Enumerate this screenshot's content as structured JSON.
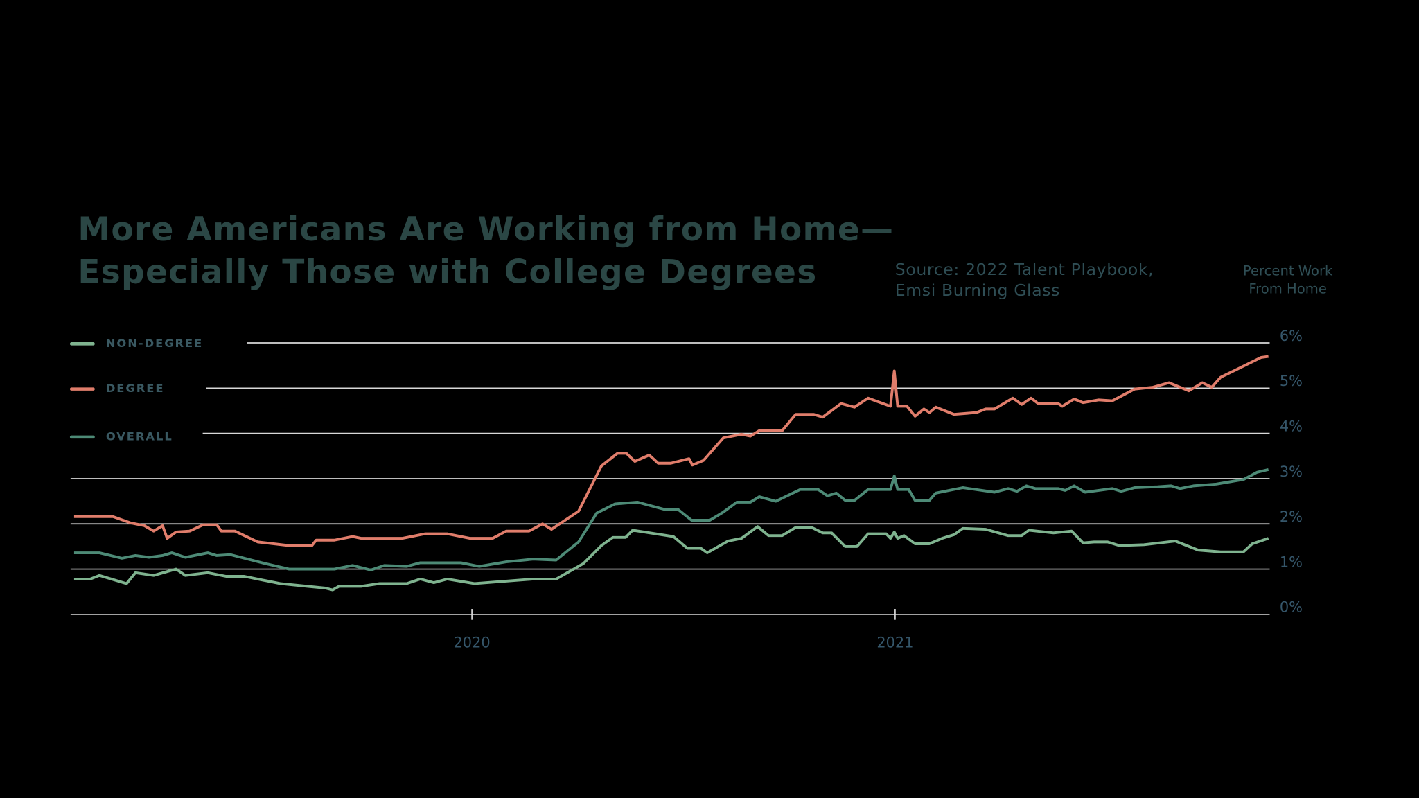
{
  "chart_data": {
    "type": "line",
    "title": [
      "More Americans Are Working from Home—",
      "Especially Those with College Degrees"
    ],
    "source": [
      "Source: 2022 Talent Playbook,",
      "Emsi Burning Glass"
    ],
    "y_label": [
      "Percent Work",
      "From Home"
    ],
    "xlim": [
      2019.056,
      2021.885
    ],
    "xticks": [
      2020,
      2021
    ],
    "ylim": [
      0,
      6
    ],
    "yticks": [
      {
        "value": 0,
        "label": "0%"
      },
      {
        "value": 1,
        "label": "1%"
      },
      {
        "value": 2,
        "label": "2%"
      },
      {
        "value": 3,
        "label": "3%"
      },
      {
        "value": 4,
        "label": "4%"
      },
      {
        "value": 5,
        "label": "5%"
      },
      {
        "value": 6,
        "label": "6%"
      }
    ],
    "grid": true,
    "legend": "upper left",
    "series": [
      {
        "name": "NON-DEGREE",
        "color": "#7fb38f",
        "x": [
          2019.06,
          2019.098,
          2019.12,
          2019.184,
          2019.205,
          2019.248,
          2019.301,
          2019.323,
          2019.376,
          2019.419,
          2019.462,
          2019.547,
          2019.611,
          2019.654,
          2019.671,
          2019.686,
          2019.739,
          2019.782,
          2019.846,
          2019.878,
          2019.91,
          2019.942,
          2020.006,
          2020.145,
          2020.199,
          2020.263,
          2020.306,
          2020.333,
          2020.363,
          2020.38,
          2020.476,
          2020.509,
          2020.541,
          2020.556,
          2020.605,
          2020.637,
          2020.675,
          2020.701,
          2020.733,
          2020.765,
          2020.803,
          2020.829,
          2020.85,
          2020.882,
          2020.91,
          2020.936,
          2020.979,
          2020.989,
          2020.998,
          2021.006,
          2021.021,
          2021.047,
          2021.081,
          2021.111,
          2021.139,
          2021.16,
          2021.214,
          2021.267,
          2021.299,
          2021.316,
          2021.374,
          2021.417,
          2021.444,
          2021.47,
          2021.502,
          2021.53,
          2021.588,
          2021.662,
          2021.716,
          2021.769,
          2021.823,
          2021.844,
          2021.882
        ],
        "values": [
          0.78,
          0.78,
          0.86,
          0.68,
          0.92,
          0.86,
          1.0,
          0.86,
          0.92,
          0.84,
          0.84,
          0.68,
          0.62,
          0.58,
          0.54,
          0.62,
          0.62,
          0.68,
          0.68,
          0.78,
          0.7,
          0.78,
          0.68,
          0.78,
          0.78,
          1.12,
          1.52,
          1.7,
          1.7,
          1.86,
          1.72,
          1.46,
          1.46,
          1.36,
          1.62,
          1.68,
          1.94,
          1.74,
          1.74,
          1.92,
          1.92,
          1.8,
          1.8,
          1.5,
          1.5,
          1.78,
          1.78,
          1.68,
          1.82,
          1.68,
          1.74,
          1.56,
          1.56,
          1.68,
          1.76,
          1.9,
          1.88,
          1.74,
          1.74,
          1.86,
          1.8,
          1.84,
          1.58,
          1.6,
          1.6,
          1.52,
          1.54,
          1.62,
          1.42,
          1.38,
          1.38,
          1.56,
          1.68
        ]
      },
      {
        "name": "DEGREE",
        "color": "#e07d6b",
        "x": [
          2019.06,
          2019.152,
          2019.194,
          2019.226,
          2019.248,
          2019.269,
          2019.28,
          2019.301,
          2019.333,
          2019.365,
          2019.397,
          2019.408,
          2019.44,
          2019.494,
          2019.568,
          2019.622,
          2019.632,
          2019.675,
          2019.718,
          2019.739,
          2019.835,
          2019.889,
          2019.942,
          2019.996,
          2020.049,
          2020.081,
          2020.135,
          2020.167,
          2020.188,
          2020.252,
          2020.306,
          2020.344,
          2020.365,
          2020.385,
          2020.419,
          2020.44,
          2020.47,
          2020.513,
          2020.521,
          2020.547,
          2020.594,
          2020.637,
          2020.658,
          2020.679,
          2020.733,
          2020.765,
          2020.808,
          2020.829,
          2020.872,
          2020.904,
          2020.936,
          2020.989,
          2020.998,
          2021.006,
          2021.028,
          2021.047,
          2021.068,
          2021.081,
          2021.096,
          2021.139,
          2021.192,
          2021.214,
          2021.235,
          2021.278,
          2021.299,
          2021.321,
          2021.338,
          2021.385,
          2021.395,
          2021.423,
          2021.444,
          2021.481,
          2021.513,
          2021.566,
          2021.609,
          2021.647,
          2021.694,
          2021.726,
          2021.748,
          2021.769,
          2021.865,
          2021.882
        ],
        "values": [
          2.16,
          2.16,
          2.02,
          1.96,
          1.84,
          1.96,
          1.68,
          1.82,
          1.84,
          1.98,
          1.98,
          1.84,
          1.84,
          1.6,
          1.52,
          1.52,
          1.64,
          1.64,
          1.72,
          1.68,
          1.68,
          1.78,
          1.78,
          1.68,
          1.68,
          1.84,
          1.84,
          2.0,
          1.88,
          2.28,
          3.28,
          3.56,
          3.56,
          3.38,
          3.52,
          3.34,
          3.34,
          3.44,
          3.3,
          3.4,
          3.9,
          3.98,
          3.94,
          4.06,
          4.06,
          4.42,
          4.42,
          4.36,
          4.66,
          4.58,
          4.78,
          4.6,
          5.38,
          4.6,
          4.6,
          4.38,
          4.54,
          4.46,
          4.58,
          4.42,
          4.46,
          4.54,
          4.54,
          4.78,
          4.64,
          4.78,
          4.66,
          4.66,
          4.6,
          4.76,
          4.68,
          4.74,
          4.72,
          4.98,
          5.02,
          5.12,
          4.94,
          5.12,
          5.02,
          5.24,
          5.68,
          5.7
        ]
      },
      {
        "name": "OVERALL",
        "color": "#4d8a76",
        "x": [
          2019.06,
          2019.12,
          2019.173,
          2019.205,
          2019.237,
          2019.269,
          2019.291,
          2019.323,
          2019.376,
          2019.397,
          2019.429,
          2019.504,
          2019.568,
          2019.675,
          2019.718,
          2019.761,
          2019.793,
          2019.846,
          2019.878,
          2019.974,
          2020.017,
          2020.081,
          2020.145,
          2020.199,
          2020.252,
          2020.295,
          2020.338,
          2020.391,
          2020.455,
          2020.487,
          2020.519,
          2020.562,
          2020.594,
          2020.626,
          2020.658,
          2020.679,
          2020.718,
          2020.776,
          2020.818,
          2020.84,
          2020.861,
          2020.882,
          2020.904,
          2020.936,
          2020.989,
          2020.998,
          2021.006,
          2021.032,
          2021.047,
          2021.081,
          2021.096,
          2021.16,
          2021.235,
          2021.267,
          2021.288,
          2021.31,
          2021.331,
          2021.385,
          2021.402,
          2021.423,
          2021.449,
          2021.513,
          2021.534,
          2021.566,
          2021.62,
          2021.652,
          2021.673,
          2021.705,
          2021.759,
          2021.823,
          2021.855,
          2021.882
        ],
        "values": [
          1.36,
          1.36,
          1.24,
          1.3,
          1.26,
          1.3,
          1.36,
          1.26,
          1.36,
          1.3,
          1.32,
          1.14,
          1.0,
          1.0,
          1.08,
          0.98,
          1.08,
          1.06,
          1.14,
          1.14,
          1.06,
          1.16,
          1.22,
          1.2,
          1.6,
          2.24,
          2.44,
          2.48,
          2.32,
          2.32,
          2.08,
          2.08,
          2.26,
          2.48,
          2.48,
          2.6,
          2.5,
          2.76,
          2.76,
          2.62,
          2.68,
          2.52,
          2.52,
          2.76,
          2.76,
          3.06,
          2.76,
          2.76,
          2.52,
          2.52,
          2.68,
          2.8,
          2.7,
          2.78,
          2.72,
          2.84,
          2.78,
          2.78,
          2.74,
          2.84,
          2.7,
          2.78,
          2.72,
          2.8,
          2.82,
          2.84,
          2.78,
          2.84,
          2.88,
          2.98,
          3.14,
          3.2
        ]
      }
    ]
  }
}
